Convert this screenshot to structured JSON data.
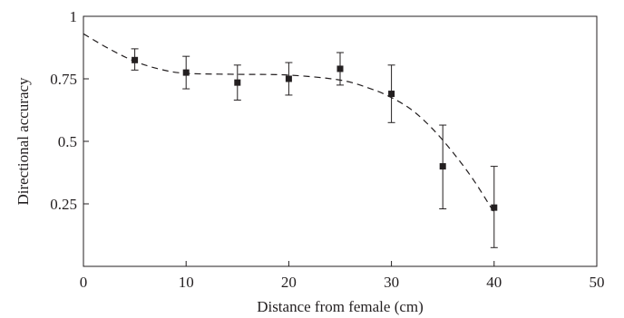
{
  "chart_data": {
    "type": "scatter",
    "title": "",
    "xlabel": "Distance from female (cm)",
    "ylabel": "Directional accuracy",
    "xlim": [
      0,
      50
    ],
    "ylim": [
      0,
      1
    ],
    "x_ticks": [
      0,
      10,
      20,
      30,
      40,
      50
    ],
    "x_tick_labels": [
      "0",
      "10",
      "20",
      "30",
      "40",
      "50"
    ],
    "y_ticks": [
      0.25,
      0.5,
      0.75,
      1
    ],
    "y_tick_labels": [
      "0.25",
      "0.5",
      "0.75",
      "1"
    ],
    "grid": false,
    "series": [
      {
        "points": [
          {
            "x": 5,
            "y": 0.825,
            "err_low": 0.785,
            "err_high": 0.87
          },
          {
            "x": 10,
            "y": 0.775,
            "err_low": 0.71,
            "err_high": 0.84
          },
          {
            "x": 15,
            "y": 0.735,
            "err_low": 0.665,
            "err_high": 0.805
          },
          {
            "x": 20,
            "y": 0.75,
            "err_low": 0.685,
            "err_high": 0.815
          },
          {
            "x": 25,
            "y": 0.79,
            "err_low": 0.725,
            "err_high": 0.855
          },
          {
            "x": 30,
            "y": 0.69,
            "err_low": 0.575,
            "err_high": 0.805
          },
          {
            "x": 35,
            "y": 0.4,
            "err_low": 0.23,
            "err_high": 0.565
          },
          {
            "x": 40,
            "y": 0.235,
            "err_low": 0.075,
            "err_high": 0.4
          }
        ]
      }
    ],
    "fit_line": {
      "style": "dashed",
      "points": [
        {
          "x": 0,
          "y": 0.93
        },
        {
          "x": 2.5,
          "y": 0.87
        },
        {
          "x": 5,
          "y": 0.82
        },
        {
          "x": 7.5,
          "y": 0.788
        },
        {
          "x": 10,
          "y": 0.772
        },
        {
          "x": 15,
          "y": 0.768
        },
        {
          "x": 20,
          "y": 0.765
        },
        {
          "x": 25,
          "y": 0.745
        },
        {
          "x": 28,
          "y": 0.71
        },
        {
          "x": 30,
          "y": 0.675
        },
        {
          "x": 32,
          "y": 0.625
        },
        {
          "x": 34,
          "y": 0.55
        },
        {
          "x": 36,
          "y": 0.455
        },
        {
          "x": 38,
          "y": 0.345
        },
        {
          "x": 40,
          "y": 0.215
        }
      ]
    },
    "colors": {
      "ink": "#231f20"
    }
  }
}
